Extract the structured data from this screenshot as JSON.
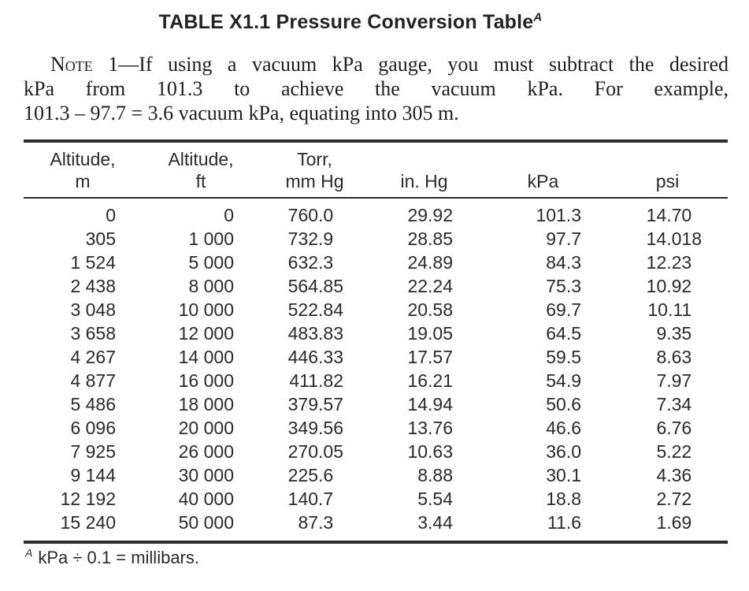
{
  "title": {
    "text": "TABLE X1.1 Pressure Conversion Table",
    "marker": "A"
  },
  "note": {
    "label": "Note 1",
    "line1_rest": "—If using a vacuum kPa gauge, you must subtract the desired",
    "line2": "kPa from 101.3 to achieve the vacuum kPa. For example,",
    "line3": "101.3 – 97.7 = 3.6 vacuum kPa, equating into 305 m."
  },
  "table": {
    "columns": [
      {
        "line1": "Altitude,",
        "line2": "m"
      },
      {
        "line1": "Altitude,",
        "line2": "ft"
      },
      {
        "line1": "Torr,",
        "line2": "mm Hg"
      },
      {
        "line1": "",
        "line2": "in. Hg"
      },
      {
        "line1": "",
        "line2": "kPa"
      },
      {
        "line1": "",
        "line2": "psi"
      }
    ],
    "rows": [
      [
        "0",
        "0",
        "760.0",
        "29.92",
        "101.3",
        "14.70"
      ],
      [
        "305",
        "1 000",
        "732.9",
        "28.85",
        "97.7",
        "14.018"
      ],
      [
        "1 524",
        "5 000",
        "632.3",
        "24.89",
        "84.3",
        "12.23"
      ],
      [
        "2 438",
        "8 000",
        "564.85",
        "22.24",
        "75.3",
        "10.92"
      ],
      [
        "3 048",
        "10 000",
        "522.84",
        "20.58",
        "69.7",
        "10.11"
      ],
      [
        "3 658",
        "12 000",
        "483.83",
        "19.05",
        "64.5",
        "9.35"
      ],
      [
        "4 267",
        "14 000",
        "446.33",
        "17.57",
        "59.5",
        "8.63"
      ],
      [
        "4 877",
        "16 000",
        "411.82",
        "16.21",
        "54.9",
        "7.97"
      ],
      [
        "5 486",
        "18 000",
        "379.57",
        "14.94",
        "50.6",
        "7.34"
      ],
      [
        "6 096",
        "20 000",
        "349.56",
        "13.76",
        "46.6",
        "6.76"
      ],
      [
        "7 925",
        "26 000",
        "270.05",
        "10.63",
        "36.0",
        "5.22"
      ],
      [
        "9 144",
        "30 000",
        "225.6",
        "8.88",
        "30.1",
        "4.36"
      ],
      [
        "12 192",
        "40 000",
        "140.7",
        "5.54",
        "18.8",
        "2.72"
      ],
      [
        "15 240",
        "50 000",
        "87.3",
        "3.44",
        "11.6",
        "1.69"
      ]
    ]
  },
  "footnote": {
    "marker": "A",
    "text": "kPa ÷ 0.1 = millibars."
  }
}
